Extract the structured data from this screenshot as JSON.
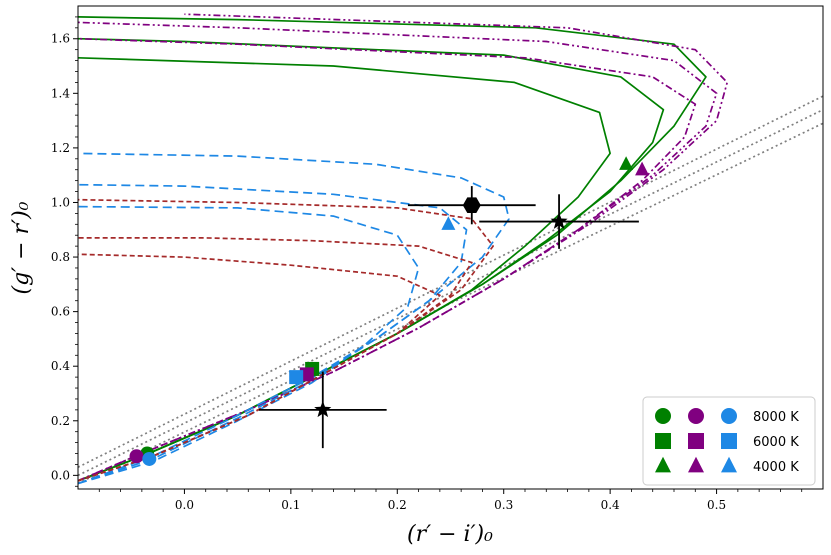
{
  "chart_data": {
    "type": "line",
    "xlabel": "(r′ − i′)₀",
    "ylabel": "(g′ − r′)₀",
    "xlim": [
      -0.1,
      0.6
    ],
    "ylim": [
      -0.05,
      1.72
    ],
    "x_ticks": [
      0.0,
      0.1,
      0.2,
      0.3,
      0.4,
      0.5
    ],
    "x_tick_labels": [
      "0.0",
      "0.1",
      "0.2",
      "0.3",
      "0.4",
      "0.5"
    ],
    "y_ticks": [
      0.0,
      0.2,
      0.4,
      0.6,
      0.8,
      1.0,
      1.2,
      1.4,
      1.6
    ],
    "y_tick_labels": [
      "0.0",
      "0.2",
      "0.4",
      "0.6",
      "0.8",
      "1.0",
      "1.2",
      "1.4",
      "1.6"
    ],
    "colors": {
      "green": "#008000",
      "purple": "#800080",
      "blue": "#1e88e5",
      "darkred": "#a52a2a",
      "gray": "#808080",
      "black": "#000000"
    },
    "series": [
      {
        "name": "gray-dotted-1",
        "color": "#808080",
        "dash": "2,3",
        "x": [
          -0.1,
          0.6
        ],
        "y": [
          0.03,
          1.39
        ]
      },
      {
        "name": "gray-dotted-2",
        "color": "#808080",
        "dash": "2,3",
        "x": [
          -0.1,
          0.6
        ],
        "y": [
          0.0,
          1.34
        ]
      },
      {
        "name": "gray-dotted-3",
        "color": "#808080",
        "dash": "2,3",
        "x": [
          -0.1,
          0.6
        ],
        "y": [
          -0.03,
          1.29
        ]
      },
      {
        "name": "green-1",
        "color": "#008000",
        "dash": "",
        "x": [
          -0.1,
          -0.04,
          0.05,
          0.12,
          0.2,
          0.28,
          0.35,
          0.41,
          0.46,
          0.49,
          0.46,
          0.33,
          0.05,
          -0.1
        ],
        "y": [
          -0.02,
          0.07,
          0.22,
          0.36,
          0.52,
          0.7,
          0.88,
          1.08,
          1.28,
          1.46,
          1.58,
          1.64,
          1.67,
          1.68
        ]
      },
      {
        "name": "green-2",
        "color": "#008000",
        "dash": "",
        "x": [
          -0.1,
          -0.04,
          0.05,
          0.12,
          0.2,
          0.28,
          0.34,
          0.4,
          0.44,
          0.45,
          0.41,
          0.3,
          0.0,
          -0.1
        ],
        "y": [
          -0.02,
          0.07,
          0.22,
          0.36,
          0.52,
          0.7,
          0.86,
          1.04,
          1.22,
          1.34,
          1.46,
          1.54,
          1.59,
          1.6
        ]
      },
      {
        "name": "green-3",
        "color": "#008000",
        "dash": "",
        "x": [
          -0.1,
          -0.04,
          0.05,
          0.12,
          0.2,
          0.27,
          0.32,
          0.37,
          0.4,
          0.39,
          0.31,
          0.14,
          -0.1
        ],
        "y": [
          -0.02,
          0.07,
          0.22,
          0.36,
          0.52,
          0.68,
          0.84,
          1.02,
          1.18,
          1.33,
          1.44,
          1.5,
          1.53
        ]
      },
      {
        "name": "purple-dashdot-1",
        "color": "#800080",
        "dash": "7,3,2,3",
        "x": [
          -0.1,
          -0.04,
          0.06,
          0.14,
          0.22,
          0.3,
          0.37,
          0.43,
          0.47,
          0.48,
          0.44,
          0.32,
          0.05,
          -0.1
        ],
        "y": [
          -0.02,
          0.08,
          0.24,
          0.38,
          0.54,
          0.72,
          0.9,
          1.08,
          1.24,
          1.36,
          1.46,
          1.53,
          1.58,
          1.6
        ]
      },
      {
        "name": "purple-dashdot-2",
        "color": "#800080",
        "dash": "7,3,2,3,2,3",
        "x": [
          -0.1,
          -0.04,
          0.06,
          0.14,
          0.22,
          0.3,
          0.37,
          0.44,
          0.49,
          0.5,
          0.46,
          0.34,
          0.05,
          -0.1
        ],
        "y": [
          -0.02,
          0.08,
          0.24,
          0.38,
          0.54,
          0.72,
          0.9,
          1.1,
          1.28,
          1.4,
          1.52,
          1.59,
          1.64,
          1.66
        ]
      },
      {
        "name": "purple-dashdot-3",
        "color": "#800080",
        "dash": "7,3,2,3,2,3",
        "x": [
          -0.1,
          -0.04,
          0.06,
          0.14,
          0.22,
          0.3,
          0.38,
          0.45,
          0.5,
          0.51,
          0.48,
          0.36,
          0.0
        ],
        "y": [
          -0.02,
          0.08,
          0.24,
          0.38,
          0.54,
          0.72,
          0.92,
          1.12,
          1.3,
          1.44,
          1.56,
          1.64,
          1.69
        ]
      },
      {
        "name": "blue-dashed-1",
        "color": "#1e88e5",
        "dash": "9,5",
        "x": [
          -0.1,
          -0.03,
          0.05,
          0.12,
          0.18,
          0.23,
          0.28,
          0.305,
          0.3,
          0.26,
          0.18,
          0.05,
          -0.1
        ],
        "y": [
          -0.03,
          0.07,
          0.22,
          0.36,
          0.5,
          0.64,
          0.8,
          0.94,
          1.02,
          1.09,
          1.14,
          1.17,
          1.18
        ]
      },
      {
        "name": "blue-dashed-2",
        "color": "#1e88e5",
        "dash": "9,5",
        "x": [
          -0.1,
          -0.03,
          0.05,
          0.12,
          0.18,
          0.23,
          0.26,
          0.265,
          0.24,
          0.14,
          0.0,
          -0.1
        ],
        "y": [
          -0.03,
          0.06,
          0.21,
          0.35,
          0.5,
          0.64,
          0.78,
          0.9,
          0.98,
          1.03,
          1.06,
          1.065
        ]
      },
      {
        "name": "blue-dashed-3",
        "color": "#1e88e5",
        "dash": "9,5",
        "x": [
          -0.1,
          -0.03,
          0.05,
          0.12,
          0.17,
          0.21,
          0.22,
          0.2,
          0.14,
          0.05,
          -0.1
        ],
        "y": [
          -0.03,
          0.05,
          0.2,
          0.34,
          0.48,
          0.62,
          0.76,
          0.88,
          0.95,
          0.98,
          0.985
        ]
      },
      {
        "name": "darkred-dashed-1",
        "color": "#a52a2a",
        "dash": "5,3",
        "x": [
          -0.1,
          -0.03,
          0.06,
          0.13,
          0.2,
          0.26,
          0.29,
          0.27,
          0.2,
          0.05,
          -0.1
        ],
        "y": [
          -0.02,
          0.07,
          0.22,
          0.37,
          0.52,
          0.68,
          0.84,
          0.94,
          0.98,
          1.0,
          1.01
        ]
      },
      {
        "name": "darkred-dashed-2",
        "color": "#a52a2a",
        "dash": "5,3",
        "x": [
          -0.1,
          -0.03,
          0.06,
          0.13,
          0.2,
          0.25,
          0.27,
          0.22,
          0.12,
          0.02,
          -0.1
        ],
        "y": [
          -0.02,
          0.07,
          0.22,
          0.37,
          0.52,
          0.66,
          0.78,
          0.84,
          0.86,
          0.87,
          0.87
        ]
      },
      {
        "name": "darkred-dashed-3",
        "color": "#a52a2a",
        "dash": "5,3",
        "x": [
          -0.1,
          -0.03,
          0.06,
          0.13,
          0.2,
          0.24,
          0.2,
          0.1,
          0.0,
          -0.1
        ],
        "y": [
          -0.02,
          0.07,
          0.22,
          0.37,
          0.52,
          0.66,
          0.73,
          0.77,
          0.8,
          0.81
        ]
      }
    ],
    "markers": [
      {
        "name": "green-circle-8000K",
        "shape": "circle",
        "color": "#008000",
        "x": -0.035,
        "y": 0.08
      },
      {
        "name": "purple-circle-8000K",
        "shape": "circle",
        "color": "#800080",
        "x": -0.045,
        "y": 0.07
      },
      {
        "name": "blue-circle-8000K",
        "shape": "circle",
        "color": "#1e88e5",
        "x": -0.033,
        "y": 0.06
      },
      {
        "name": "green-square-6000K",
        "shape": "square",
        "color": "#008000",
        "x": 0.12,
        "y": 0.39
      },
      {
        "name": "purple-square-6000K",
        "shape": "square",
        "color": "#800080",
        "x": 0.115,
        "y": 0.37
      },
      {
        "name": "blue-square-6000K",
        "shape": "square",
        "color": "#1e88e5",
        "x": 0.105,
        "y": 0.36
      },
      {
        "name": "green-triangle-4000K",
        "shape": "triangle",
        "color": "#008000",
        "x": 0.415,
        "y": 1.14
      },
      {
        "name": "purple-triangle-4000K",
        "shape": "triangle",
        "color": "#800080",
        "x": 0.43,
        "y": 1.12
      },
      {
        "name": "blue-triangle-4000K",
        "shape": "triangle",
        "color": "#1e88e5",
        "x": 0.248,
        "y": 0.92
      }
    ],
    "data_points": [
      {
        "name": "hexagon-object",
        "shape": "hexagon",
        "x": 0.27,
        "y": 0.99,
        "xerr": 0.06,
        "yerr": 0.07
      },
      {
        "name": "star-object-1",
        "shape": "star",
        "x": 0.352,
        "y": 0.93,
        "xerr": 0.075,
        "yerr": 0.1
      },
      {
        "name": "star-object-2",
        "shape": "star",
        "x": 0.13,
        "y": 0.24,
        "xerr": 0.06,
        "yerr": 0.14
      }
    ],
    "legend": {
      "position": "bottom-right",
      "rows": [
        {
          "label": "8000 K",
          "shape": "circle",
          "colors": [
            "#008000",
            "#800080",
            "#1e88e5"
          ]
        },
        {
          "label": "6000 K",
          "shape": "square",
          "colors": [
            "#008000",
            "#800080",
            "#1e88e5"
          ]
        },
        {
          "label": "4000 K",
          "shape": "triangle",
          "colors": [
            "#008000",
            "#800080",
            "#1e88e5"
          ]
        }
      ]
    }
  }
}
